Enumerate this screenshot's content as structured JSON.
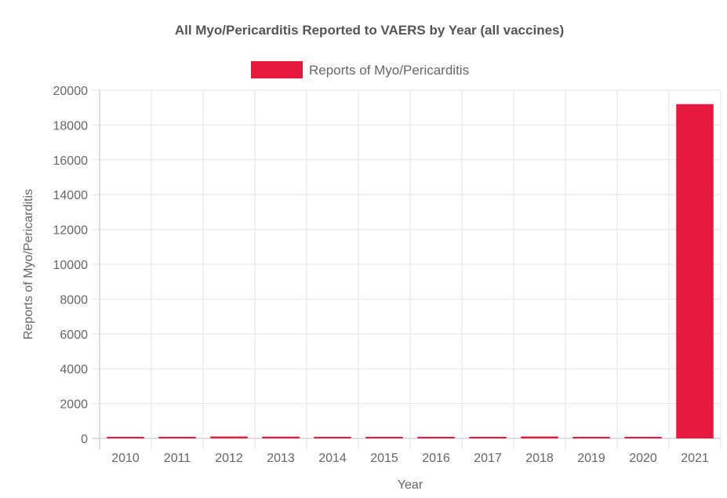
{
  "chart_data": {
    "type": "bar",
    "title": "All Myo/Pericarditis Reported to VAERS by Year (all vaccines)",
    "xlabel": "Year",
    "ylabel": "Reports of Myo/Pericarditis",
    "categories": [
      "2010",
      "2011",
      "2012",
      "2013",
      "2014",
      "2015",
      "2016",
      "2017",
      "2018",
      "2019",
      "2020",
      "2021"
    ],
    "series": [
      {
        "name": "Reports of Myo/Pericarditis",
        "color": "#e8193f",
        "values": [
          20,
          60,
          110,
          100,
          45,
          25,
          30,
          35,
          110,
          45,
          40,
          19200
        ]
      }
    ],
    "ylim": [
      0,
      20000
    ],
    "yticks": [
      0,
      2000,
      4000,
      6000,
      8000,
      10000,
      12000,
      14000,
      16000,
      18000,
      20000
    ],
    "legend_position": "top",
    "grid": true
  }
}
